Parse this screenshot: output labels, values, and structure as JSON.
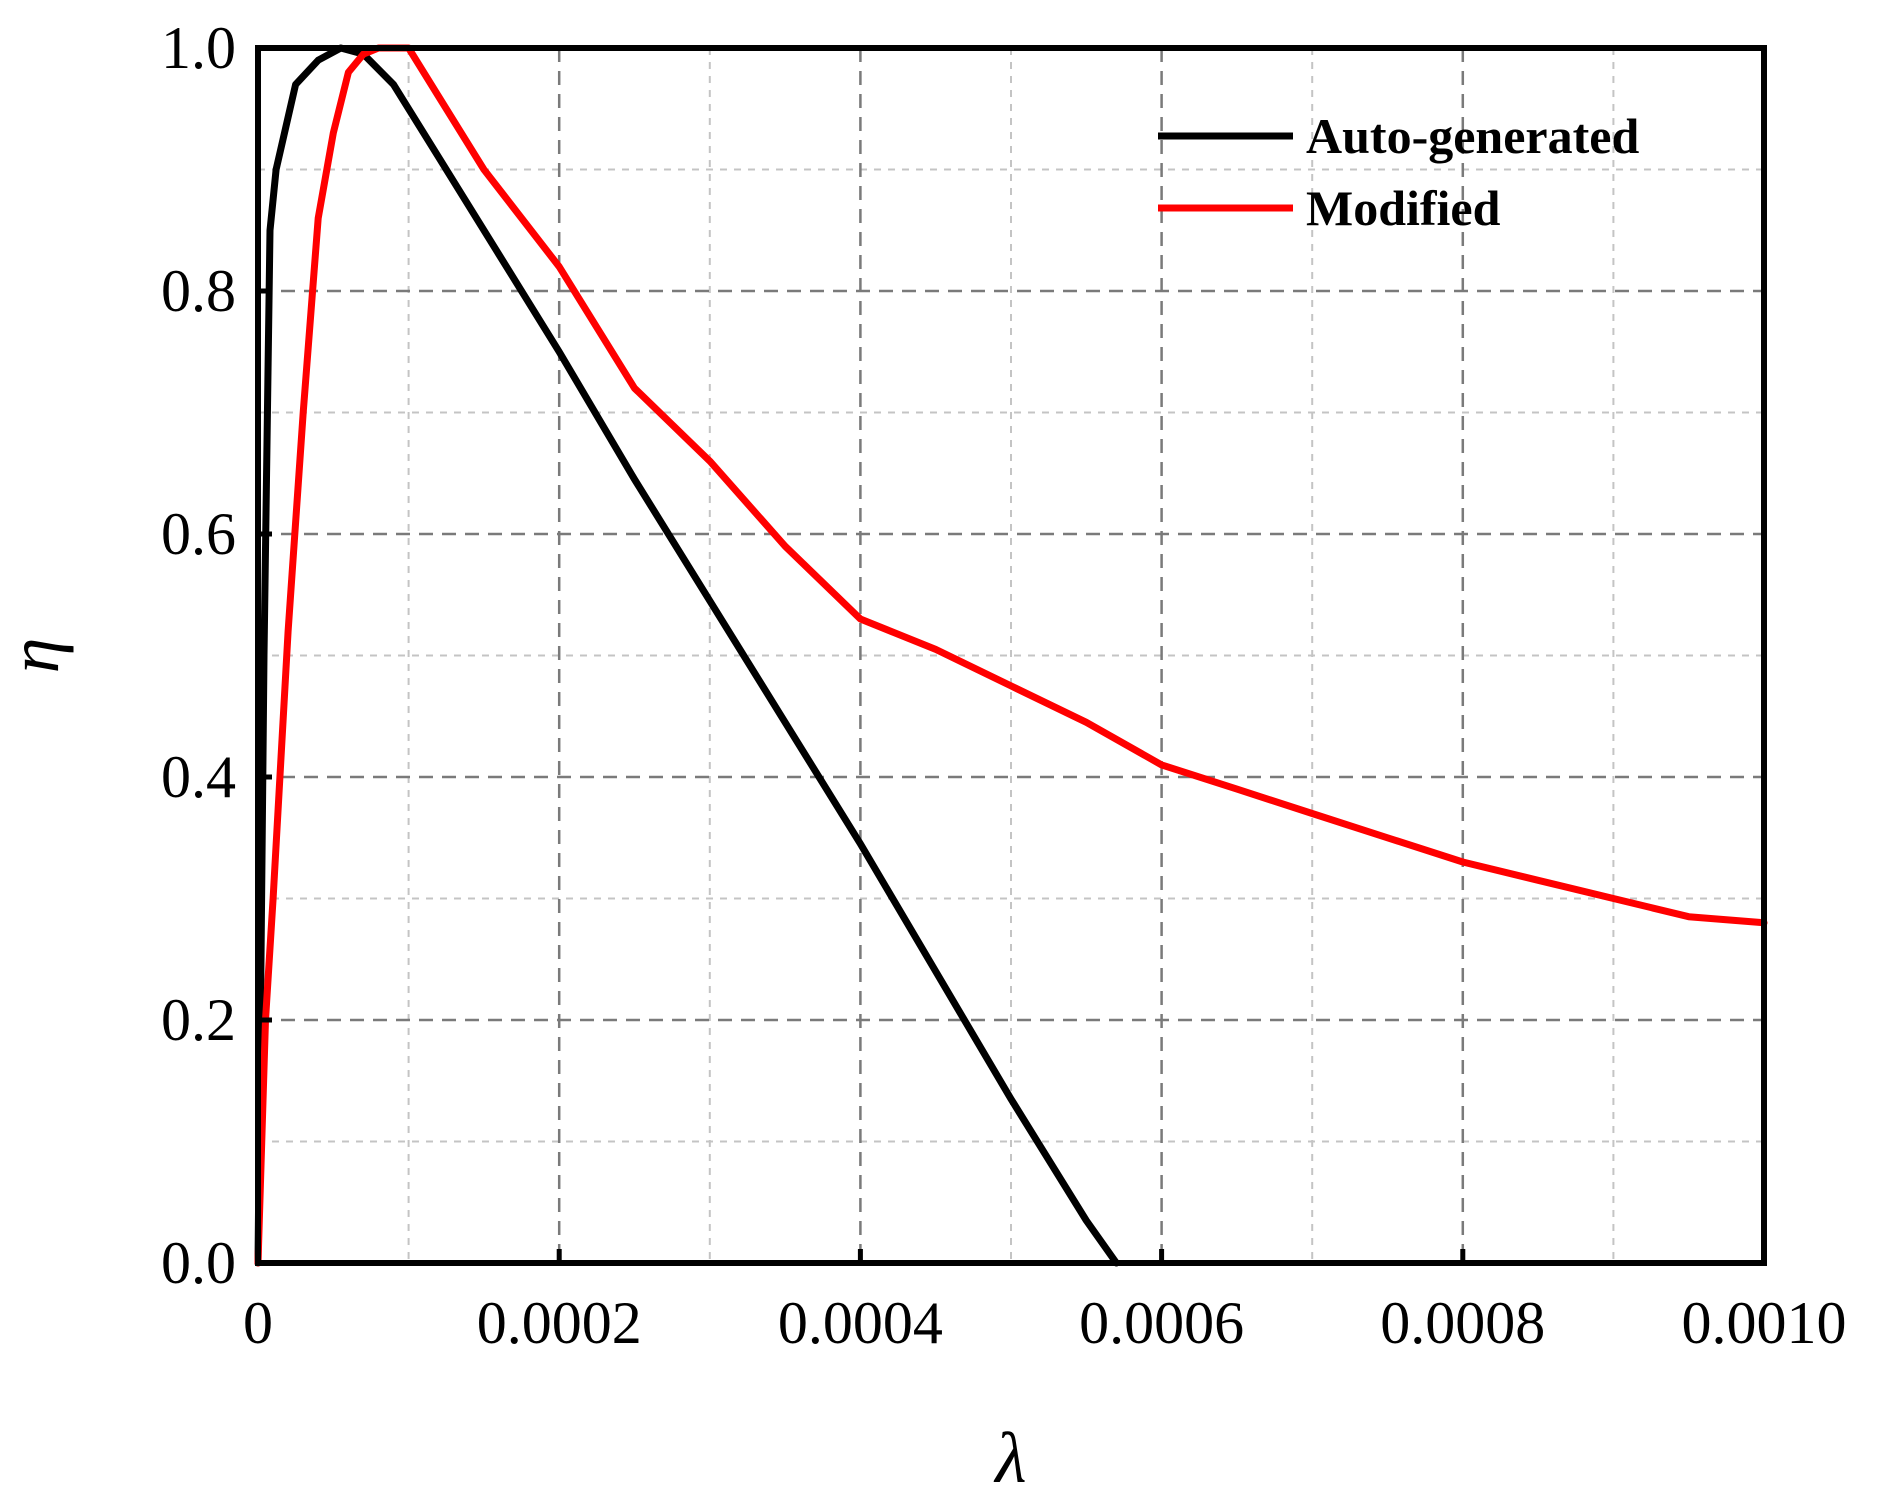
{
  "chart_data": {
    "type": "line",
    "title": "",
    "xlabel": "λ",
    "ylabel": "η",
    "xlim": [
      0,
      0.001
    ],
    "ylim": [
      0,
      1.0
    ],
    "x_ticks": [
      0,
      0.0002,
      0.0004,
      0.0006,
      0.0008,
      0.001
    ],
    "x_tick_labels": [
      "0",
      "0.0002",
      "0.0004",
      "0.0006",
      "0.0008",
      "0.0010"
    ],
    "y_ticks": [
      0,
      0.2,
      0.4,
      0.6,
      0.8,
      1.0
    ],
    "y_tick_labels": [
      "0.0",
      "0.2",
      "0.4",
      "0.6",
      "0.8",
      "1.0"
    ],
    "x_minor_ticks": [
      0.0001,
      0.0003,
      0.0005,
      0.0007,
      0.0009
    ],
    "y_minor_ticks": [
      0.1,
      0.3,
      0.5,
      0.7,
      0.9
    ],
    "grid": true,
    "legend_position": "top-right",
    "series": [
      {
        "name": "Auto-generated",
        "color": "#000000",
        "x": [
          0,
          2e-06,
          4e-06,
          8e-06,
          1.2e-05,
          2.5e-05,
          4e-05,
          5.5e-05,
          7e-05,
          9e-05,
          0.00012,
          0.00016,
          0.0002,
          0.00025,
          0.0003,
          0.00035,
          0.0004,
          0.00045,
          0.0005,
          0.00055,
          0.00057
        ],
        "y": [
          0,
          0.25,
          0.5,
          0.85,
          0.9,
          0.97,
          0.99,
          1.0,
          0.995,
          0.97,
          0.91,
          0.83,
          0.75,
          0.645,
          0.545,
          0.445,
          0.345,
          0.24,
          0.135,
          0.035,
          0.0
        ]
      },
      {
        "name": "Modified",
        "color": "#ff0000",
        "x": [
          0,
          5e-06,
          1e-05,
          2e-05,
          3e-05,
          4e-05,
          5e-05,
          6e-05,
          7e-05,
          8e-05,
          0.0001,
          0.00012,
          0.00015,
          0.0002,
          0.00025,
          0.0003,
          0.00035,
          0.0004,
          0.00045,
          0.0005,
          0.00055,
          0.0006,
          0.00065,
          0.0007,
          0.00075,
          0.0008,
          0.00085,
          0.0009,
          0.00095,
          0.001
        ],
        "y": [
          0,
          0.2,
          0.3,
          0.52,
          0.7,
          0.86,
          0.93,
          0.98,
          0.995,
          1.0,
          1.0,
          0.96,
          0.9,
          0.82,
          0.72,
          0.66,
          0.59,
          0.53,
          0.505,
          0.475,
          0.445,
          0.41,
          0.39,
          0.37,
          0.35,
          0.33,
          0.315,
          0.3,
          0.285,
          0.28
        ]
      }
    ]
  }
}
